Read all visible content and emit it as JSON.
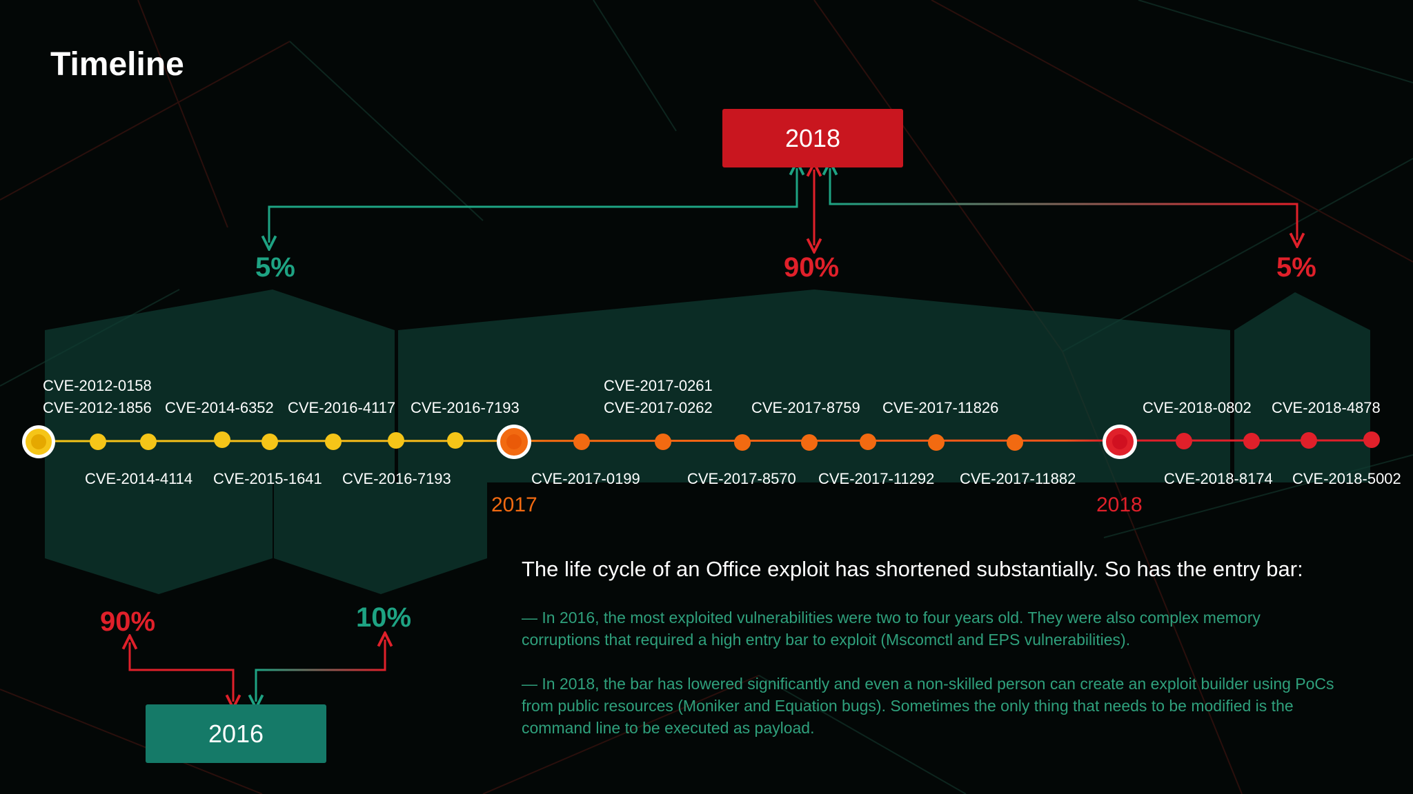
{
  "title": "Timeline",
  "top_box": "2018",
  "bottom_box": "2016",
  "percentages": {
    "top_left": "5%",
    "top_center": "90%",
    "top_right": "5%",
    "bottom_left": "90%",
    "bottom_right": "10%"
  },
  "year_markers": {
    "y2017": "2017",
    "y2018": "2018"
  },
  "cves": {
    "a1": "CVE-2012-0158",
    "a2": "CVE-2012-1856",
    "a3": "CVE-2014-6352",
    "a4": "CVE-2016-4117",
    "a5": "CVE-2016-7193",
    "b1": "CVE-2014-4114",
    "b2": "CVE-2015-1641",
    "b3": "CVE-2016-7193",
    "c1": "CVE-2017-0261",
    "c2": "CVE-2017-0262",
    "c3": "CVE-2017-8759",
    "c4": "CVE-2017-11826",
    "d1": "CVE-2017-0199",
    "d2": "CVE-2017-8570",
    "d3": "CVE-2017-11292",
    "d4": "CVE-2017-11882",
    "e1": "CVE-2018-0802",
    "e2": "CVE-2018-4878",
    "f1": "CVE-2018-8174",
    "f2": "CVE-2018-5002"
  },
  "summary": {
    "heading": "The life cycle of an Office exploit has shortened substantially. So has the entry bar:",
    "point1": "— In 2016, the most exploited vulnerabilities were two to four years old. They were also complex memory corruptions that required a high entry bar to exploit (Mscomctl and EPS vulnerabilities).",
    "point2": "—  In 2018, the bar has lowered significantly and even a non-skilled person can create an exploit builder using PoCs from public resources (Moniker and Equation bugs). Sometimes the only thing that needs to be modified is the command line to be executed as payload."
  },
  "colors": {
    "teal": "#1ea383",
    "red": "#e0202a",
    "yellow": "#f5c518",
    "orange": "#f26a11",
    "panel": "#0f3c32"
  }
}
